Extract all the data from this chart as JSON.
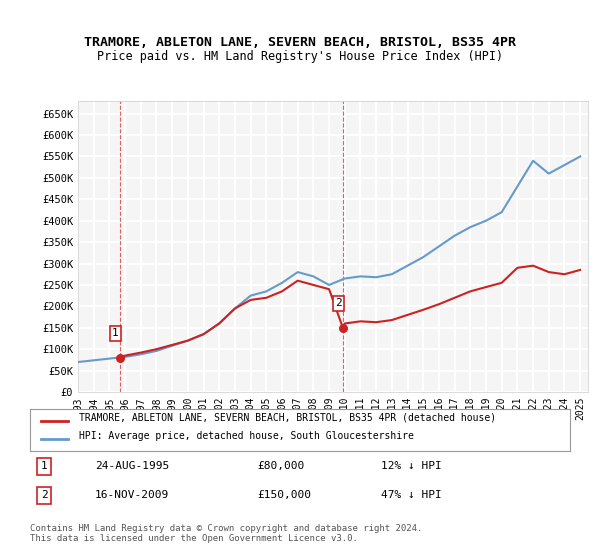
{
  "title": "TRAMORE, ABLETON LANE, SEVERN BEACH, BRISTOL, BS35 4PR",
  "subtitle": "Price paid vs. HM Land Registry's House Price Index (HPI)",
  "ylabel_ticks": [
    "£0",
    "£50K",
    "£100K",
    "£150K",
    "£200K",
    "£250K",
    "£300K",
    "£350K",
    "£400K",
    "£450K",
    "£500K",
    "£550K",
    "£600K",
    "£650K"
  ],
  "ytick_values": [
    0,
    50000,
    100000,
    150000,
    200000,
    250000,
    300000,
    350000,
    400000,
    450000,
    500000,
    550000,
    600000,
    650000
  ],
  "hpi_color": "#6699cc",
  "price_color": "#cc2222",
  "dashed_line_color": "#cc2222",
  "background_color": "#f5f5f5",
  "grid_color": "#ffffff",
  "legend_label_price": "TRAMORE, ABLETON LANE, SEVERN BEACH, BRISTOL, BS35 4PR (detached house)",
  "legend_label_hpi": "HPI: Average price, detached house, South Gloucestershire",
  "annotation1_label": "1",
  "annotation1_date": "24-AUG-1995",
  "annotation1_price": "£80,000",
  "annotation1_hpi": "12% ↓ HPI",
  "annotation2_label": "2",
  "annotation2_date": "16-NOV-2009",
  "annotation2_price": "£150,000",
  "annotation2_hpi": "47% ↓ HPI",
  "footer": "Contains HM Land Registry data © Crown copyright and database right 2024.\nThis data is licensed under the Open Government Licence v3.0.",
  "hpi_years": [
    1993,
    1994,
    1995,
    1996,
    1997,
    1998,
    1999,
    2000,
    2001,
    2002,
    2003,
    2004,
    2005,
    2006,
    2007,
    2008,
    2009,
    2010,
    2011,
    2012,
    2013,
    2014,
    2015,
    2016,
    2017,
    2018,
    2019,
    2020,
    2021,
    2022,
    2023,
    2024,
    2025
  ],
  "hpi_values": [
    70000,
    74000,
    78000,
    82000,
    88000,
    96000,
    108000,
    120000,
    135000,
    160000,
    195000,
    225000,
    235000,
    255000,
    280000,
    270000,
    250000,
    265000,
    270000,
    268000,
    275000,
    295000,
    315000,
    340000,
    365000,
    385000,
    400000,
    420000,
    480000,
    540000,
    510000,
    530000,
    550000
  ],
  "price_points_x": [
    1995.65,
    2009.88
  ],
  "price_points_y": [
    80000,
    150000
  ],
  "price_line_x": [
    1993,
    1994,
    1995,
    1995.65,
    1996,
    1997,
    1998,
    1999,
    2000,
    2001,
    2002,
    2003,
    2004,
    2005,
    2006,
    2007,
    2008,
    2009,
    2009.88,
    2010,
    2011,
    2012,
    2013,
    2014,
    2015,
    2016,
    2017,
    2018,
    2019,
    2020,
    2021,
    2022,
    2023,
    2024,
    2025
  ],
  "price_line_y": [
    null,
    null,
    null,
    80000,
    85000,
    92000,
    100000,
    110000,
    120000,
    135000,
    160000,
    195000,
    215000,
    220000,
    235000,
    260000,
    250000,
    240000,
    150000,
    160000,
    165000,
    163000,
    168000,
    180000,
    192000,
    205000,
    220000,
    235000,
    245000,
    255000,
    290000,
    295000,
    280000,
    275000,
    285000
  ],
  "xlim": [
    1993,
    2025.5
  ],
  "ylim": [
    0,
    680000
  ],
  "xtick_years": [
    1993,
    1994,
    1995,
    1996,
    1997,
    1998,
    1999,
    2000,
    2001,
    2002,
    2003,
    2004,
    2005,
    2006,
    2007,
    2008,
    2009,
    2010,
    2011,
    2012,
    2013,
    2014,
    2015,
    2016,
    2017,
    2018,
    2019,
    2020,
    2021,
    2022,
    2023,
    2024,
    2025
  ]
}
